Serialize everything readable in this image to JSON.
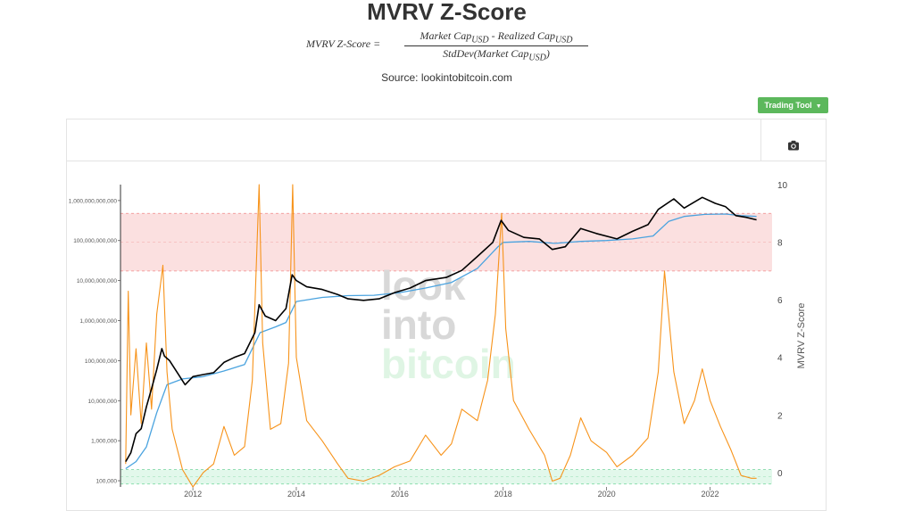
{
  "page": {
    "title": "MVRV Z-Score",
    "formula": {
      "lhs": "MVRV Z-Score =",
      "numerator": "Market Cap",
      "numerator_sub": "USD",
      "numerator_mid": " - Realized Cap",
      "numerator_sub2": "USD",
      "denominator": "StdDev(Market Cap",
      "denominator_sub": "USD",
      "denominator_end": ")"
    },
    "source": "Source: lookintobitcoin.com",
    "trading_tool_label": "Trading Tool"
  },
  "watermark": [
    "look",
    "into",
    "bitcoin"
  ],
  "colors": {
    "market_cap": "#000000",
    "realized_cap": "#4aa3df",
    "z_score": "#f7931a",
    "red_band": "#f9d6d6",
    "green_band": "#d8f5e4",
    "button": "#5cb85c"
  },
  "chart_data": {
    "type": "line",
    "x_ticks": [
      "2012",
      "2014",
      "2016",
      "2018",
      "2020",
      "2022"
    ],
    "left_axis": {
      "scale": "log",
      "ticks": [
        "100,000",
        "1,000,000",
        "10,000,000",
        "100,000,000",
        "1,000,000,000",
        "10,000,000,000",
        "100,000,000,000",
        "1,000,000,000,000"
      ],
      "range": [
        70000,
        2500000000000
      ]
    },
    "right_axis": {
      "label": "MVRV Z-Score",
      "ticks": [
        "0",
        "2",
        "4",
        "6",
        "8",
        "10"
      ],
      "range": [
        -0.5,
        10
      ]
    },
    "bands": [
      {
        "name": "red",
        "from": 7,
        "to": 9
      },
      {
        "name": "green",
        "from": -0.4,
        "to": 0.1
      }
    ],
    "series": [
      {
        "key": "market_cap",
        "axis": "left",
        "points": [
          [
            2010.7,
            300000
          ],
          [
            2010.8,
            500000
          ],
          [
            2010.9,
            1500000
          ],
          [
            2011.0,
            2000000
          ],
          [
            2011.1,
            7000000
          ],
          [
            2011.2,
            20000000
          ],
          [
            2011.3,
            60000000
          ],
          [
            2011.4,
            200000000
          ],
          [
            2011.45,
            130000000
          ],
          [
            2011.55,
            100000000
          ],
          [
            2011.7,
            50000000
          ],
          [
            2011.85,
            25000000
          ],
          [
            2012.0,
            40000000
          ],
          [
            2012.2,
            45000000
          ],
          [
            2012.4,
            50000000
          ],
          [
            2012.6,
            90000000
          ],
          [
            2012.8,
            120000000
          ],
          [
            2013.0,
            150000000
          ],
          [
            2013.2,
            500000000
          ],
          [
            2013.28,
            2500000000
          ],
          [
            2013.4,
            1300000000
          ],
          [
            2013.6,
            1000000000
          ],
          [
            2013.8,
            2000000000
          ],
          [
            2013.92,
            14000000000
          ],
          [
            2014.0,
            10000000000
          ],
          [
            2014.2,
            7000000000
          ],
          [
            2014.5,
            6000000000
          ],
          [
            2014.8,
            4500000000
          ],
          [
            2015.0,
            3500000000
          ],
          [
            2015.3,
            3200000000
          ],
          [
            2015.6,
            3500000000
          ],
          [
            2015.9,
            5000000000
          ],
          [
            2016.2,
            6500000000
          ],
          [
            2016.5,
            10000000000
          ],
          [
            2016.9,
            12000000000
          ],
          [
            2017.2,
            18000000000
          ],
          [
            2017.5,
            40000000000
          ],
          [
            2017.8,
            90000000000
          ],
          [
            2017.96,
            320000000000
          ],
          [
            2018.1,
            180000000000
          ],
          [
            2018.4,
            120000000000
          ],
          [
            2018.7,
            110000000000
          ],
          [
            2018.95,
            60000000000
          ],
          [
            2019.2,
            70000000000
          ],
          [
            2019.5,
            200000000000
          ],
          [
            2019.8,
            150000000000
          ],
          [
            2020.2,
            110000000000
          ],
          [
            2020.5,
            170000000000
          ],
          [
            2020.8,
            250000000000
          ],
          [
            2021.0,
            600000000000
          ],
          [
            2021.3,
            1100000000000
          ],
          [
            2021.5,
            650000000000
          ],
          [
            2021.85,
            1200000000000
          ],
          [
            2022.1,
            850000000000
          ],
          [
            2022.3,
            700000000000
          ],
          [
            2022.5,
            420000000000
          ],
          [
            2022.7,
            380000000000
          ],
          [
            2022.9,
            330000000000
          ]
        ]
      },
      {
        "key": "realized_cap",
        "axis": "left",
        "points": [
          [
            2010.7,
            200000
          ],
          [
            2010.9,
            300000
          ],
          [
            2011.1,
            700000
          ],
          [
            2011.3,
            5000000
          ],
          [
            2011.5,
            25000000
          ],
          [
            2011.8,
            35000000
          ],
          [
            2012.2,
            40000000
          ],
          [
            2012.6,
            55000000
          ],
          [
            2013.0,
            80000000
          ],
          [
            2013.3,
            500000000
          ],
          [
            2013.6,
            700000000
          ],
          [
            2013.8,
            900000000
          ],
          [
            2014.0,
            3000000000
          ],
          [
            2014.5,
            3800000000
          ],
          [
            2015.0,
            4200000000
          ],
          [
            2015.5,
            4300000000
          ],
          [
            2016.0,
            5000000000
          ],
          [
            2016.5,
            6500000000
          ],
          [
            2017.0,
            9000000000
          ],
          [
            2017.5,
            20000000000
          ],
          [
            2017.9,
            70000000000
          ],
          [
            2018.0,
            90000000000
          ],
          [
            2018.5,
            95000000000
          ],
          [
            2019.0,
            85000000000
          ],
          [
            2019.5,
            95000000000
          ],
          [
            2020.0,
            100000000000
          ],
          [
            2020.5,
            110000000000
          ],
          [
            2020.9,
            130000000000
          ],
          [
            2021.2,
            300000000000
          ],
          [
            2021.5,
            400000000000
          ],
          [
            2021.9,
            450000000000
          ],
          [
            2022.3,
            460000000000
          ],
          [
            2022.6,
            420000000000
          ],
          [
            2022.9,
            400000000000
          ]
        ]
      },
      {
        "key": "z_score",
        "axis": "right",
        "points": [
          [
            2010.7,
            0.3
          ],
          [
            2010.75,
            6.3
          ],
          [
            2010.8,
            2.0
          ],
          [
            2010.9,
            4.3
          ],
          [
            2011.0,
            1.7
          ],
          [
            2011.1,
            4.5
          ],
          [
            2011.2,
            2.2
          ],
          [
            2011.3,
            5.5
          ],
          [
            2011.42,
            7.2
          ],
          [
            2011.5,
            3.5
          ],
          [
            2011.6,
            1.5
          ],
          [
            2011.8,
            0.1
          ],
          [
            2011.9,
            -0.2
          ],
          [
            2012.0,
            -0.5
          ],
          [
            2012.2,
            0.0
          ],
          [
            2012.4,
            0.3
          ],
          [
            2012.6,
            1.6
          ],
          [
            2012.8,
            0.6
          ],
          [
            2013.0,
            0.9
          ],
          [
            2013.15,
            3.2
          ],
          [
            2013.28,
            10.0
          ],
          [
            2013.35,
            4.5
          ],
          [
            2013.5,
            1.5
          ],
          [
            2013.7,
            1.7
          ],
          [
            2013.85,
            3.8
          ],
          [
            2013.93,
            10.0
          ],
          [
            2014.0,
            4.0
          ],
          [
            2014.2,
            1.8
          ],
          [
            2014.5,
            1.1
          ],
          [
            2014.8,
            0.3
          ],
          [
            2015.0,
            -0.2
          ],
          [
            2015.3,
            -0.3
          ],
          [
            2015.6,
            -0.1
          ],
          [
            2015.9,
            0.2
          ],
          [
            2016.2,
            0.4
          ],
          [
            2016.5,
            1.3
          ],
          [
            2016.8,
            0.6
          ],
          [
            2017.0,
            1.0
          ],
          [
            2017.2,
            2.2
          ],
          [
            2017.5,
            1.8
          ],
          [
            2017.7,
            3.2
          ],
          [
            2017.85,
            5.5
          ],
          [
            2017.97,
            9.0
          ],
          [
            2018.05,
            5.0
          ],
          [
            2018.2,
            2.5
          ],
          [
            2018.5,
            1.5
          ],
          [
            2018.8,
            0.6
          ],
          [
            2018.95,
            -0.3
          ],
          [
            2019.1,
            -0.2
          ],
          [
            2019.3,
            0.6
          ],
          [
            2019.5,
            1.9
          ],
          [
            2019.7,
            1.1
          ],
          [
            2020.0,
            0.7
          ],
          [
            2020.2,
            0.2
          ],
          [
            2020.5,
            0.6
          ],
          [
            2020.8,
            1.2
          ],
          [
            2021.0,
            3.5
          ],
          [
            2021.12,
            7.0
          ],
          [
            2021.3,
            3.5
          ],
          [
            2021.5,
            1.7
          ],
          [
            2021.7,
            2.5
          ],
          [
            2021.85,
            3.6
          ],
          [
            2022.0,
            2.5
          ],
          [
            2022.2,
            1.6
          ],
          [
            2022.4,
            0.8
          ],
          [
            2022.6,
            -0.1
          ],
          [
            2022.8,
            -0.2
          ],
          [
            2022.9,
            -0.2
          ]
        ]
      }
    ]
  }
}
